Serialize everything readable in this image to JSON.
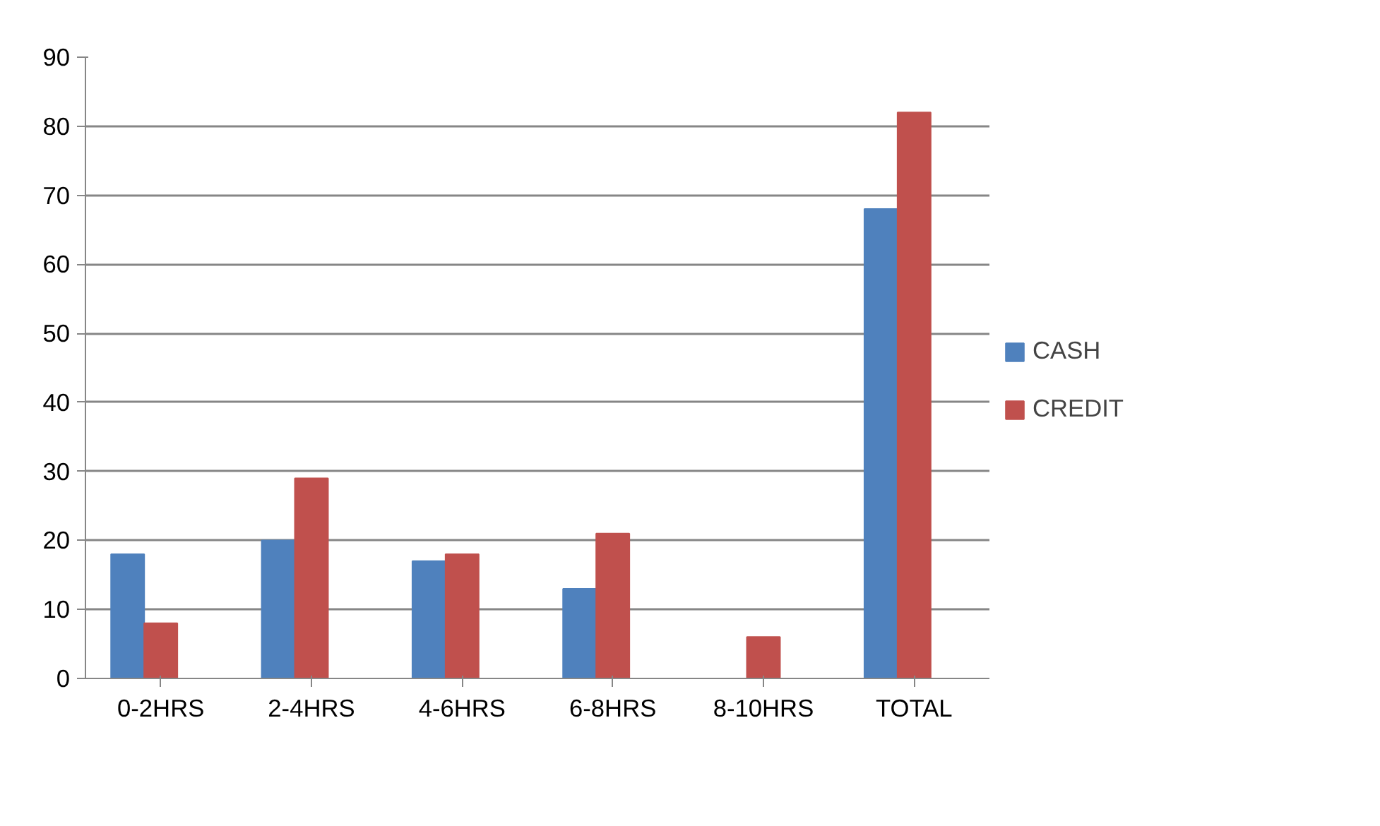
{
  "chart_data": {
    "type": "bar",
    "categories": [
      "0-2HRS",
      "2-4HRS",
      "4-6HRS",
      "6-8HRS",
      "8-10HRS",
      "TOTAL"
    ],
    "series": [
      {
        "name": "CASH",
        "color": "#4f81bd",
        "values": [
          18,
          20,
          17,
          13,
          0,
          68
        ]
      },
      {
        "name": "CREDIT",
        "color": "#c0504d",
        "values": [
          8,
          29,
          18,
          21,
          6,
          82
        ]
      },
      {
        "color": "#9bbb59",
        "values": [
          null,
          null,
          null,
          null,
          0,
          null
        ]
      }
    ],
    "ylim": [
      0,
      90
    ],
    "yticks": [
      0,
      10,
      20,
      30,
      40,
      50,
      60,
      70,
      80,
      90
    ],
    "grid": "y",
    "legend": "right"
  }
}
